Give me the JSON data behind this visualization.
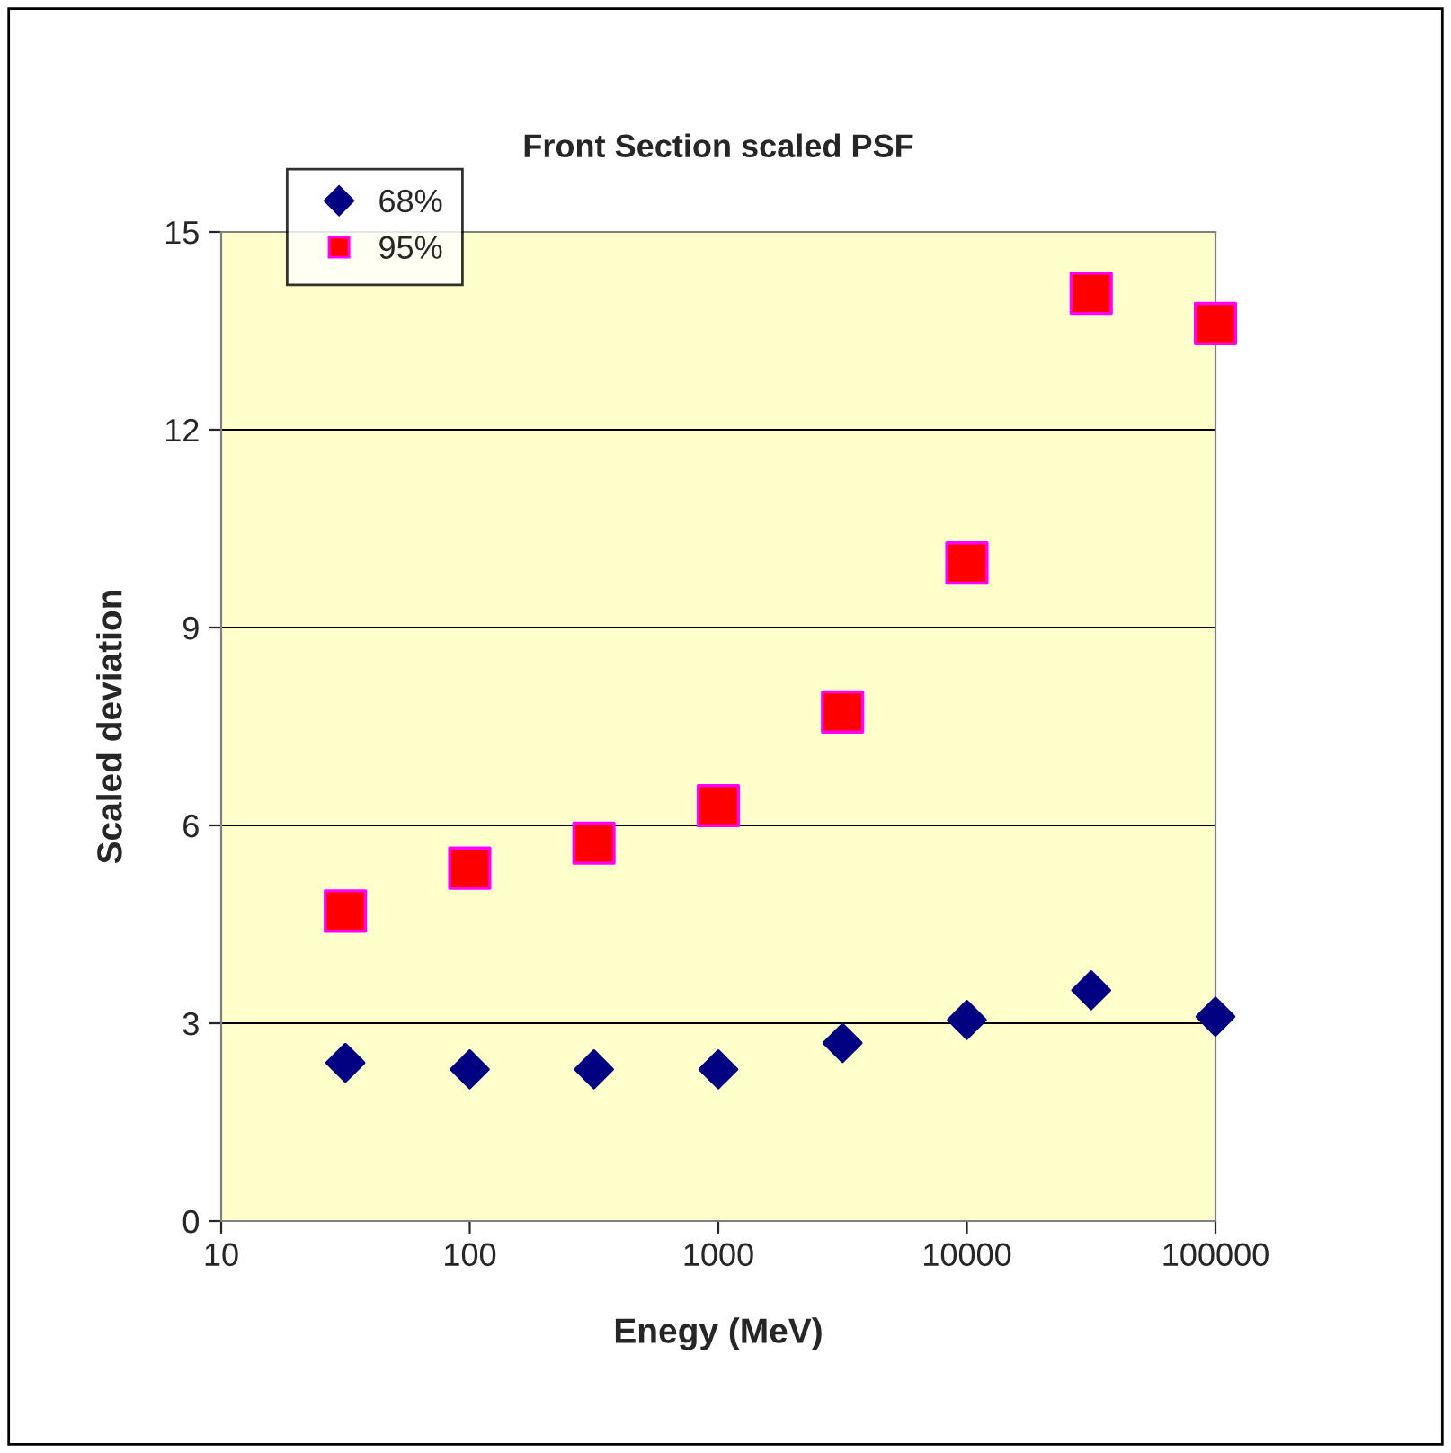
{
  "chart_data": {
    "type": "scatter",
    "title": "Front Section scaled PSF",
    "xlabel": "Enegy (MeV)",
    "ylabel": "Scaled deviation",
    "x": [
      31.6,
      100,
      316,
      1000,
      3162,
      10000,
      31623,
      100000
    ],
    "series": [
      {
        "name": "68%",
        "color": "#000080",
        "marker": "diamond",
        "values": [
          2.4,
          2.3,
          2.3,
          2.3,
          2.7,
          3.05,
          3.5,
          3.1
        ]
      },
      {
        "name": "95%",
        "color": "#ff0000",
        "marker": "square",
        "values": [
          4.7,
          5.35,
          5.73,
          6.3,
          7.72,
          9.98,
          14.07,
          13.61
        ]
      }
    ],
    "log": "x",
    "xlim": [
      10,
      100000
    ],
    "xticks": [
      10,
      100,
      1000,
      10000,
      100000
    ],
    "ylim": [
      0,
      15
    ],
    "yticks": [
      0,
      3,
      6,
      9,
      12,
      15
    ],
    "grid": "y",
    "legend": "top left"
  }
}
